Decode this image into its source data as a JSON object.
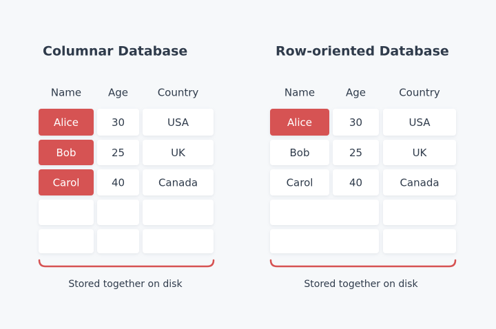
{
  "panels": [
    {
      "title": "Columnar Database",
      "headers": [
        "Name",
        "Age",
        "Country"
      ],
      "rows": [
        [
          "Alice",
          30,
          "USA"
        ],
        [
          "Bob",
          25,
          "UK"
        ],
        [
          "Carol",
          40,
          "Canada"
        ]
      ],
      "caption": "Stored together on disk"
    },
    {
      "title": "Row-oriented Database",
      "headers": [
        "Name",
        "Age",
        "Country"
      ],
      "rows": [
        [
          "Alice",
          30,
          "USA"
        ],
        [
          "Bob",
          25,
          "UK"
        ],
        [
          "Carol",
          40,
          "Canada"
        ]
      ],
      "caption": "Stored together on disk"
    }
  ]
}
